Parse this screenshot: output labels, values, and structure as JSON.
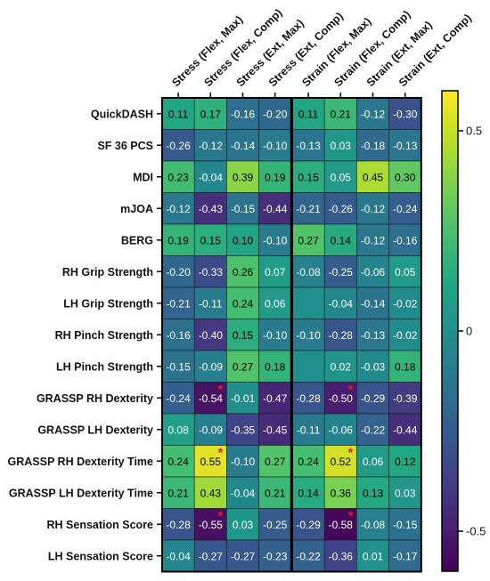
{
  "chart_data": {
    "type": "heatmap",
    "columns": [
      "Stress (Flex, Max)",
      "Stress (Flex, Comp)",
      "Stress (Ext, Max)",
      "Stress (Ext, Comp)",
      "Strain (Flex, Max)",
      "Strain (Flex, Comp)",
      "Strain (Ext, Max)",
      "Strain (Ext, Comp)"
    ],
    "rows": [
      "QuickDASH",
      "SF 36 PCS",
      "MDI",
      "mJOA",
      "BERG",
      "RH Grip Strength",
      "LH Grip Strength",
      "RH Pinch Strength",
      "LH  Pinch Strength",
      "GRASSP RH Dexterity",
      "GRASSP LH Dexterity",
      "GRASSP RH Dexterity Time",
      "GRASSP LH Dexterity Time",
      "RH Sensation Score",
      "LH Sensation Score"
    ],
    "values": [
      [
        0.11,
        0.17,
        -0.16,
        -0.2,
        0.11,
        0.21,
        -0.12,
        -0.3
      ],
      [
        -0.26,
        -0.12,
        -0.14,
        -0.1,
        -0.13,
        0.03,
        -0.18,
        -0.13
      ],
      [
        0.23,
        -0.04,
        0.39,
        0.19,
        0.15,
        0.05,
        0.45,
        0.3
      ],
      [
        -0.12,
        -0.43,
        -0.15,
        -0.44,
        -0.21,
        -0.26,
        -0.12,
        -0.24
      ],
      [
        0.19,
        0.15,
        0.1,
        -0.1,
        0.27,
        0.14,
        -0.12,
        -0.16
      ],
      [
        -0.2,
        -0.33,
        0.26,
        0.07,
        -0.08,
        -0.25,
        -0.06,
        0.05
      ],
      [
        -0.21,
        -0.11,
        0.24,
        0.06,
        null,
        -0.04,
        -0.14,
        -0.02
      ],
      [
        -0.16,
        -0.4,
        0.15,
        -0.1,
        -0.1,
        -0.28,
        -0.13,
        -0.02
      ],
      [
        -0.15,
        -0.09,
        0.27,
        0.18,
        null,
        0.02,
        -0.03,
        0.18
      ],
      [
        -0.24,
        -0.54,
        -0.01,
        -0.47,
        -0.28,
        -0.5,
        -0.29,
        -0.39
      ],
      [
        0.08,
        -0.09,
        -0.35,
        -0.45,
        -0.11,
        -0.06,
        -0.22,
        -0.44
      ],
      [
        0.24,
        0.55,
        -0.1,
        0.27,
        0.24,
        0.52,
        0.06,
        0.12
      ],
      [
        0.21,
        0.43,
        -0.04,
        0.21,
        0.14,
        0.36,
        0.13,
        0.03
      ],
      [
        -0.28,
        -0.55,
        0.03,
        -0.25,
        -0.29,
        -0.58,
        -0.08,
        -0.15
      ],
      [
        -0.04,
        -0.27,
        -0.27,
        -0.23,
        -0.22,
        -0.36,
        0.01,
        -0.17
      ]
    ],
    "cell_labels": [
      [
        "0.11",
        "0.17",
        "-0.16",
        "-0.20",
        "0.11",
        "0.21",
        "-0.12",
        "-0.30"
      ],
      [
        "-0.26",
        "-0.12",
        "-0.14",
        "-0.10",
        "-0.13",
        "0.03",
        "-0.18",
        "-0.13"
      ],
      [
        "0.23",
        "-0.04",
        "0.39",
        "0.19",
        "0.15",
        "0.05",
        "0.45",
        "0.30"
      ],
      [
        "-0.12",
        "-0.43",
        "-0.15",
        "-0.44",
        "-0.21",
        "-0.26",
        "-0.12",
        "-0.24"
      ],
      [
        "0.19",
        "0.15",
        "0.10",
        "-0.10",
        "0.27",
        "0.14",
        "-0.12",
        "-0.16"
      ],
      [
        "-0.20",
        "-0.33",
        "0.26",
        "0.07",
        "-0.08",
        "-0.25",
        "-0.06",
        "0.05"
      ],
      [
        "-0.21",
        "-0.11",
        "0.24",
        "0.06",
        "",
        "-0.04",
        "-0.14",
        "-0.02"
      ],
      [
        "-0.16",
        "-0.40",
        "0.15",
        "-0.10",
        "-0.10",
        "-0.28",
        "-0.13",
        "-0.02"
      ],
      [
        "-0.15",
        "-0.09",
        "0.27",
        "0.18",
        "",
        "0.02",
        "-0.03",
        "0.18"
      ],
      [
        "-0.24",
        "-0.54",
        "-0.01",
        "-0.47",
        "-0.28",
        "-0.50",
        "-0.29",
        "-0.39"
      ],
      [
        "0.08",
        "-0.09",
        "-0.35",
        "-0.45",
        "-0.11",
        "-0.06",
        "-0.22",
        "-0.44"
      ],
      [
        "0.24",
        "0.55",
        "-0.10",
        "0.27",
        "0.24",
        "0.52",
        "0.06",
        "0.12"
      ],
      [
        "0.21",
        "0.43",
        "-0.04",
        "0.21",
        "0.14",
        "0.36",
        "0.13",
        "0.03"
      ],
      [
        "-0.28",
        "-0.55",
        "0.03",
        "-0.25",
        "-0.29",
        "-0.58",
        "-0.08",
        "-0.15"
      ],
      [
        "-0.04",
        "-0.27",
        "-0.27",
        "-0.23",
        "-0.22",
        "-0.36",
        "0.01",
        "-0.17"
      ]
    ],
    "significant": [
      [
        9,
        1
      ],
      [
        9,
        5
      ],
      [
        11,
        1
      ],
      [
        11,
        5
      ],
      [
        13,
        1
      ],
      [
        13,
        5
      ]
    ],
    "significance_marker": "*",
    "colorbar": {
      "range": [
        -0.6,
        0.6
      ],
      "ticks": [
        0.5,
        0,
        -0.5
      ],
      "tick_labels": [
        "0.5",
        "0",
        "-0.5"
      ]
    },
    "colorscale": "viridis",
    "column_groups": [
      "Stress",
      "Strain"
    ],
    "colors": {
      "star": "#e8191d",
      "border": "#000000"
    },
    "title": "",
    "xlabel": "",
    "ylabel": ""
  }
}
